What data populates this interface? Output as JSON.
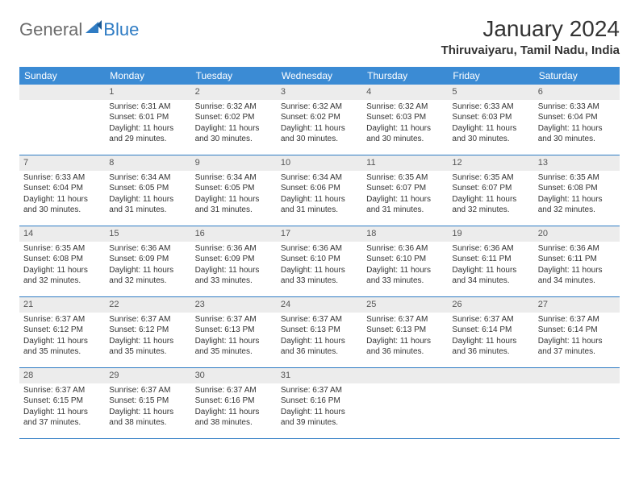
{
  "brand": {
    "name": "General",
    "suffix": "Blue"
  },
  "title": "January 2024",
  "location": "Thiruvaiyaru, Tamil Nadu, India",
  "colors": {
    "header_bg": "#3b8bd4",
    "header_text": "#ffffff",
    "daynum_bg": "#ececec",
    "cell_border": "#2f7cc4",
    "brand_gray": "#6b6b6b",
    "brand_blue": "#2f7cc4"
  },
  "weekdays": [
    "Sunday",
    "Monday",
    "Tuesday",
    "Wednesday",
    "Thursday",
    "Friday",
    "Saturday"
  ],
  "start_offset": 1,
  "days": [
    {
      "n": 1,
      "sr": "6:31 AM",
      "ss": "6:01 PM",
      "dl": "11 hours and 29 minutes."
    },
    {
      "n": 2,
      "sr": "6:32 AM",
      "ss": "6:02 PM",
      "dl": "11 hours and 30 minutes."
    },
    {
      "n": 3,
      "sr": "6:32 AM",
      "ss": "6:02 PM",
      "dl": "11 hours and 30 minutes."
    },
    {
      "n": 4,
      "sr": "6:32 AM",
      "ss": "6:03 PM",
      "dl": "11 hours and 30 minutes."
    },
    {
      "n": 5,
      "sr": "6:33 AM",
      "ss": "6:03 PM",
      "dl": "11 hours and 30 minutes."
    },
    {
      "n": 6,
      "sr": "6:33 AM",
      "ss": "6:04 PM",
      "dl": "11 hours and 30 minutes."
    },
    {
      "n": 7,
      "sr": "6:33 AM",
      "ss": "6:04 PM",
      "dl": "11 hours and 30 minutes."
    },
    {
      "n": 8,
      "sr": "6:34 AM",
      "ss": "6:05 PM",
      "dl": "11 hours and 31 minutes."
    },
    {
      "n": 9,
      "sr": "6:34 AM",
      "ss": "6:05 PM",
      "dl": "11 hours and 31 minutes."
    },
    {
      "n": 10,
      "sr": "6:34 AM",
      "ss": "6:06 PM",
      "dl": "11 hours and 31 minutes."
    },
    {
      "n": 11,
      "sr": "6:35 AM",
      "ss": "6:07 PM",
      "dl": "11 hours and 31 minutes."
    },
    {
      "n": 12,
      "sr": "6:35 AM",
      "ss": "6:07 PM",
      "dl": "11 hours and 32 minutes."
    },
    {
      "n": 13,
      "sr": "6:35 AM",
      "ss": "6:08 PM",
      "dl": "11 hours and 32 minutes."
    },
    {
      "n": 14,
      "sr": "6:35 AM",
      "ss": "6:08 PM",
      "dl": "11 hours and 32 minutes."
    },
    {
      "n": 15,
      "sr": "6:36 AM",
      "ss": "6:09 PM",
      "dl": "11 hours and 32 minutes."
    },
    {
      "n": 16,
      "sr": "6:36 AM",
      "ss": "6:09 PM",
      "dl": "11 hours and 33 minutes."
    },
    {
      "n": 17,
      "sr": "6:36 AM",
      "ss": "6:10 PM",
      "dl": "11 hours and 33 minutes."
    },
    {
      "n": 18,
      "sr": "6:36 AM",
      "ss": "6:10 PM",
      "dl": "11 hours and 33 minutes."
    },
    {
      "n": 19,
      "sr": "6:36 AM",
      "ss": "6:11 PM",
      "dl": "11 hours and 34 minutes."
    },
    {
      "n": 20,
      "sr": "6:36 AM",
      "ss": "6:11 PM",
      "dl": "11 hours and 34 minutes."
    },
    {
      "n": 21,
      "sr": "6:37 AM",
      "ss": "6:12 PM",
      "dl": "11 hours and 35 minutes."
    },
    {
      "n": 22,
      "sr": "6:37 AM",
      "ss": "6:12 PM",
      "dl": "11 hours and 35 minutes."
    },
    {
      "n": 23,
      "sr": "6:37 AM",
      "ss": "6:13 PM",
      "dl": "11 hours and 35 minutes."
    },
    {
      "n": 24,
      "sr": "6:37 AM",
      "ss": "6:13 PM",
      "dl": "11 hours and 36 minutes."
    },
    {
      "n": 25,
      "sr": "6:37 AM",
      "ss": "6:13 PM",
      "dl": "11 hours and 36 minutes."
    },
    {
      "n": 26,
      "sr": "6:37 AM",
      "ss": "6:14 PM",
      "dl": "11 hours and 36 minutes."
    },
    {
      "n": 27,
      "sr": "6:37 AM",
      "ss": "6:14 PM",
      "dl": "11 hours and 37 minutes."
    },
    {
      "n": 28,
      "sr": "6:37 AM",
      "ss": "6:15 PM",
      "dl": "11 hours and 37 minutes."
    },
    {
      "n": 29,
      "sr": "6:37 AM",
      "ss": "6:15 PM",
      "dl": "11 hours and 38 minutes."
    },
    {
      "n": 30,
      "sr": "6:37 AM",
      "ss": "6:16 PM",
      "dl": "11 hours and 38 minutes."
    },
    {
      "n": 31,
      "sr": "6:37 AM",
      "ss": "6:16 PM",
      "dl": "11 hours and 39 minutes."
    }
  ],
  "labels": {
    "sunrise": "Sunrise:",
    "sunset": "Sunset:",
    "daylight": "Daylight:"
  }
}
